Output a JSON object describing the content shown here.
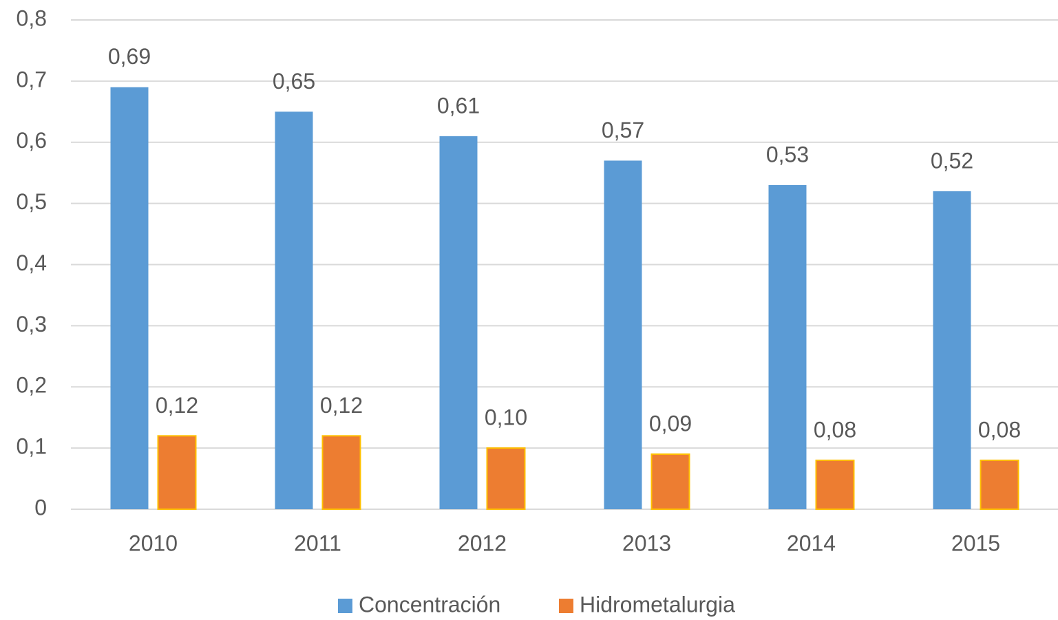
{
  "chart_data": {
    "type": "bar",
    "categories": [
      "2010",
      "2011",
      "2012",
      "2013",
      "2014",
      "2015"
    ],
    "series": [
      {
        "name": "Concentración",
        "color": "#5b9bd5",
        "values": [
          0.69,
          0.65,
          0.61,
          0.57,
          0.53,
          0.52
        ],
        "value_labels": [
          "0,69",
          "0,65",
          "0,61",
          "0,57",
          "0,53",
          "0,52"
        ]
      },
      {
        "name": "Hidrometalurgia",
        "color": "#ed7d31",
        "values": [
          0.12,
          0.12,
          0.1,
          0.09,
          0.08,
          0.08
        ],
        "value_labels": [
          "0,12",
          "0,12",
          "0,10",
          "0,09",
          "0,08",
          "0,08"
        ]
      }
    ],
    "ylim": [
      0,
      0.8
    ],
    "yticks": [
      0,
      {
        "value": 0.1,
        "label": "0,1"
      },
      {
        "value": 0.2,
        "label": "0,2"
      },
      {
        "value": 0.3,
        "label": "0,3"
      },
      {
        "value": 0.4,
        "label": "0,4"
      },
      {
        "value": 0.5,
        "label": "0,5"
      },
      {
        "value": 0.6,
        "label": "0,6"
      },
      {
        "value": 0.7,
        "label": "0,7"
      },
      {
        "value": 0.8,
        "label": "0,8"
      }
    ],
    "grid": true,
    "legend": "bottom"
  }
}
